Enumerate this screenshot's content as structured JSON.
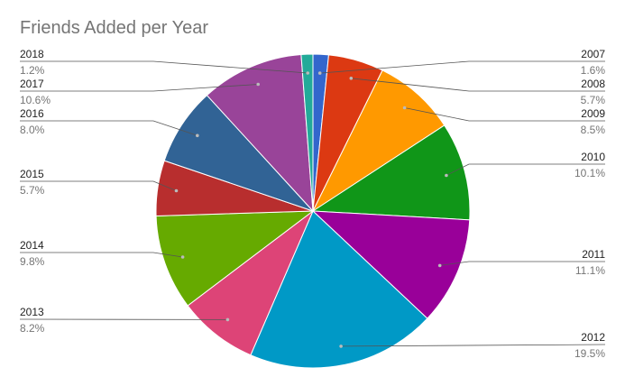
{
  "chart_data": {
    "type": "pie",
    "title": "Friends Added per Year",
    "legend": "none",
    "slices": [
      {
        "label": "2007",
        "value": 1.6,
        "display": "1.6%",
        "color": "#3366cc"
      },
      {
        "label": "2008",
        "value": 5.7,
        "display": "5.7%",
        "color": "#dc3912"
      },
      {
        "label": "2009",
        "value": 8.5,
        "display": "8.5%",
        "color": "#ff9900"
      },
      {
        "label": "2010",
        "value": 10.1,
        "display": "10.1%",
        "color": "#109618"
      },
      {
        "label": "2011",
        "value": 11.1,
        "display": "11.1%",
        "color": "#990099"
      },
      {
        "label": "2012",
        "value": 19.5,
        "display": "19.5%",
        "color": "#0099c6"
      },
      {
        "label": "2013",
        "value": 8.2,
        "display": "8.2%",
        "color": "#dd4477"
      },
      {
        "label": "2014",
        "value": 9.8,
        "display": "9.8%",
        "color": "#66aa00"
      },
      {
        "label": "2015",
        "value": 5.7,
        "display": "5.7%",
        "color": "#b82e2e"
      },
      {
        "label": "2016",
        "value": 8.0,
        "display": "8.0%",
        "color": "#316395"
      },
      {
        "label": "2017",
        "value": 10.6,
        "display": "10.6%",
        "color": "#994499"
      },
      {
        "label": "2018",
        "value": 1.2,
        "display": "1.2%",
        "color": "#22aa99"
      }
    ]
  }
}
